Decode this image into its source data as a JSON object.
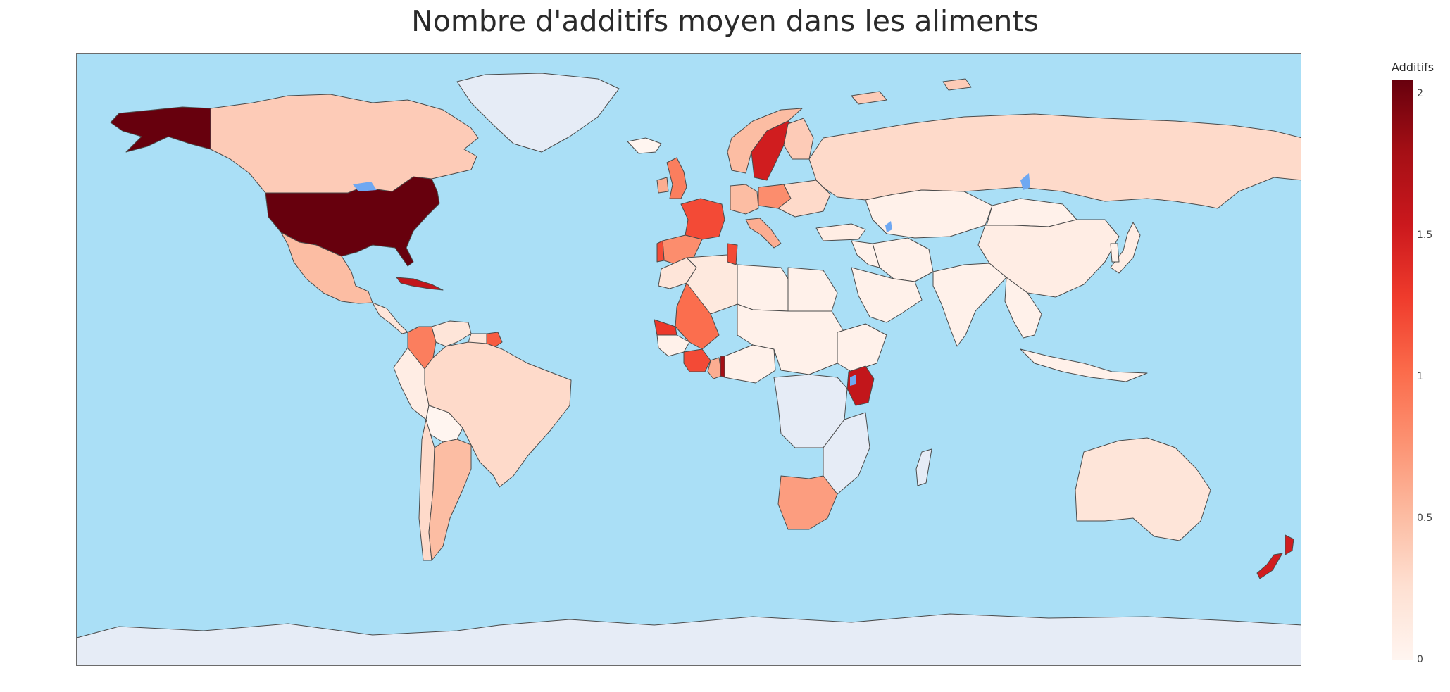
{
  "title": "Nombre d'additifs moyen dans les aliments",
  "colorbar": {
    "title": "Additifs",
    "ticks": [
      {
        "value": 2,
        "label": "2"
      },
      {
        "value": 1.5,
        "label": "1.5"
      },
      {
        "value": 1,
        "label": "1"
      },
      {
        "value": 0.5,
        "label": "0.5"
      },
      {
        "value": 0,
        "label": "0"
      }
    ],
    "range": [
      0,
      2.05
    ]
  },
  "colors": {
    "ocean": "#aadff6",
    "lakes": "#6fa8f2",
    "no_data": "#e6ecf6",
    "border": "#4a4a4a",
    "scale": [
      "#fff5f0",
      "#fee0d2",
      "#fcbba1",
      "#fc9272",
      "#fb6a4a",
      "#ef3b2c",
      "#cb181d",
      "#a50f15",
      "#67000d"
    ]
  },
  "projection": "equirectangular",
  "chart_data": {
    "type": "choropleth",
    "title": "Nombre d'additifs moyen dans les aliments",
    "colorbar_title": "Additifs",
    "colorscale": "Reds",
    "range": [
      0,
      2.05
    ],
    "values": [
      {
        "region": "United States",
        "value": 2.05
      },
      {
        "region": "Alaska",
        "value": 2.05
      },
      {
        "region": "Canada",
        "value": 0.4
      },
      {
        "region": "Mexico",
        "value": 0.5
      },
      {
        "region": "Cuba",
        "value": 1.6
      },
      {
        "region": "Colombia",
        "value": 0.9
      },
      {
        "region": "Venezuela",
        "value": 0.2
      },
      {
        "region": "Suriname",
        "value": 1.1
      },
      {
        "region": "Brazil",
        "value": 0.3
      },
      {
        "region": "Peru",
        "value": 0.1
      },
      {
        "region": "Bolivia",
        "value": 0.0
      },
      {
        "region": "Argentina",
        "value": 0.5
      },
      {
        "region": "Chile",
        "value": 0.3
      },
      {
        "region": "Greenland",
        "value": null
      },
      {
        "region": "Iceland",
        "value": 0.0
      },
      {
        "region": "United Kingdom",
        "value": 0.9
      },
      {
        "region": "Ireland",
        "value": 0.6
      },
      {
        "region": "France",
        "value": 1.2
      },
      {
        "region": "Spain",
        "value": 0.8
      },
      {
        "region": "Portugal",
        "value": 1.2
      },
      {
        "region": "Germany",
        "value": 0.5
      },
      {
        "region": "Poland",
        "value": 0.8
      },
      {
        "region": "Sweden",
        "value": 1.5
      },
      {
        "region": "Norway",
        "value": 0.5
      },
      {
        "region": "Finland",
        "value": 0.4
      },
      {
        "region": "Italy",
        "value": 0.6
      },
      {
        "region": "Russia",
        "value": 0.3
      },
      {
        "region": "Kazakhstan",
        "value": 0.05
      },
      {
        "region": "China",
        "value": 0.1
      },
      {
        "region": "Mongolia",
        "value": 0.05
      },
      {
        "region": "India",
        "value": 0.05
      },
      {
        "region": "Iran",
        "value": 0.05
      },
      {
        "region": "Saudi Arabia",
        "value": 0.05
      },
      {
        "region": "Turkey",
        "value": 0.1
      },
      {
        "region": "Morocco",
        "value": 0.2
      },
      {
        "region": "Algeria",
        "value": 0.15
      },
      {
        "region": "Tunisia",
        "value": 1.2
      },
      {
        "region": "Libya",
        "value": 0.05
      },
      {
        "region": "Egypt",
        "value": 0.05
      },
      {
        "region": "Mali",
        "value": 1.0
      },
      {
        "region": "Senegal",
        "value": 1.3
      },
      {
        "region": "Ivory Coast",
        "value": 1.2
      },
      {
        "region": "Ghana",
        "value": 0.6
      },
      {
        "region": "Togo",
        "value": 1.8
      },
      {
        "region": "Nigeria",
        "value": 0.05
      },
      {
        "region": "Kenya",
        "value": 1.6
      },
      {
        "region": "Ethiopia",
        "value": 0.05
      },
      {
        "region": "South Africa",
        "value": 0.7
      },
      {
        "region": "Australia",
        "value": 0.2
      },
      {
        "region": "New Zealand",
        "value": 1.5
      },
      {
        "region": "Japan",
        "value": 0.1
      },
      {
        "region": "Indonesia",
        "value": 0.05
      },
      {
        "region": "Antarctica",
        "value": null
      }
    ]
  }
}
